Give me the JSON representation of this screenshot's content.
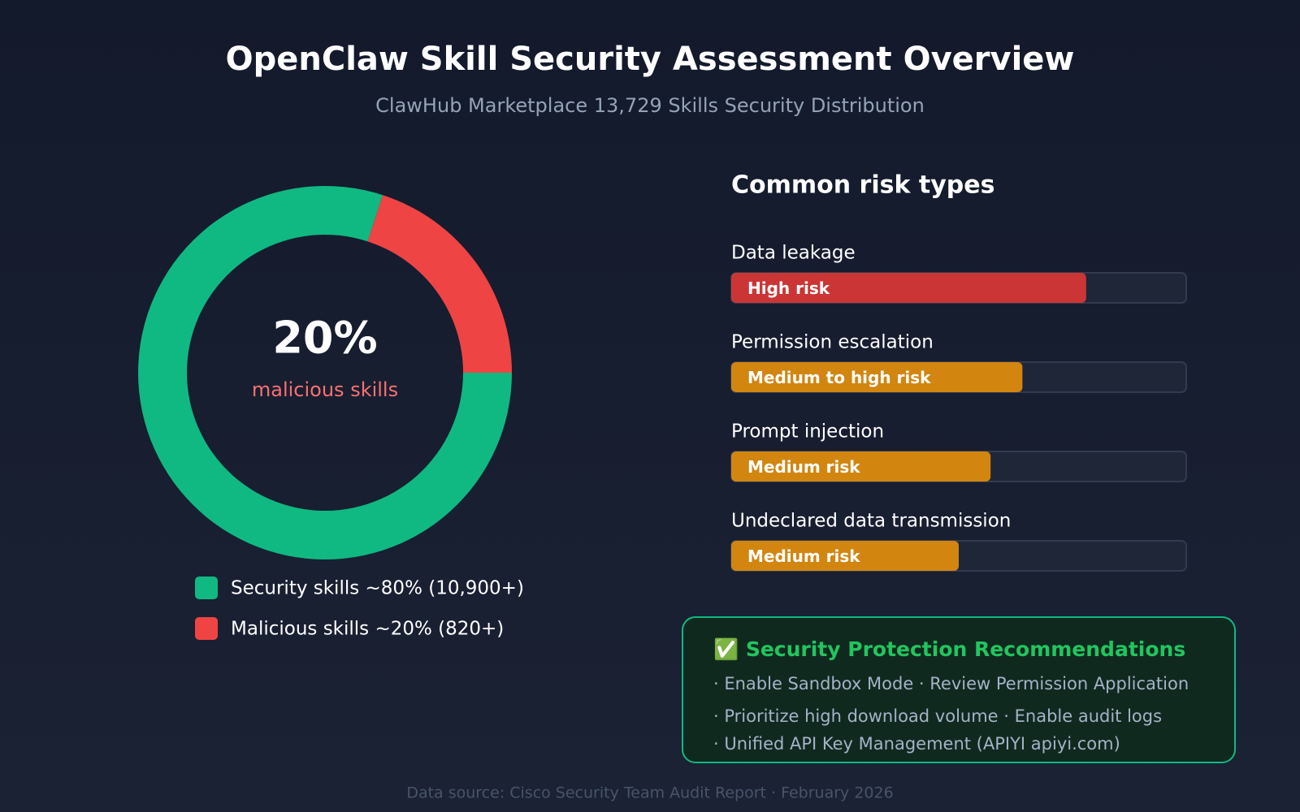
{
  "title": "OpenClaw Skill Security Assessment Overview",
  "subtitle": "ClawHub Marketplace 13,729 Skills Security Distribution",
  "chart_data": [
    {
      "type": "donut",
      "center_label": "20%",
      "center_caption": "malicious skills",
      "categories": [
        "Security skills ~80% (10,900+)",
        "Malicious skills ~20% (820+)"
      ],
      "values": [
        80,
        20
      ],
      "colors": [
        "#10b981",
        "#ef4444"
      ]
    },
    {
      "type": "hbar",
      "title": "Common risk types",
      "categories": [
        "Data leakage",
        "Permission escalation",
        "Prompt injection",
        "Undeclared data transmission"
      ],
      "values": [
        78,
        64,
        57,
        50
      ],
      "labels": [
        "High risk",
        "Medium to high risk",
        "Medium risk",
        "Medium risk"
      ],
      "colors": [
        "#cc3535",
        "#d2850f",
        "#d2850f",
        "#d2850f"
      ],
      "xlim": [
        0,
        100
      ]
    }
  ],
  "recommendations": {
    "title": "✅ Security Protection Recommendations",
    "lines": [
      "· Enable Sandbox Mode · Review Permission Application",
      "· Prioritize high download volume · Enable audit logs",
      "· Unified API Key Management (APIYI apiyi.com)"
    ]
  },
  "footer": "Data source: Cisco Security Team Audit Report · February 2026"
}
